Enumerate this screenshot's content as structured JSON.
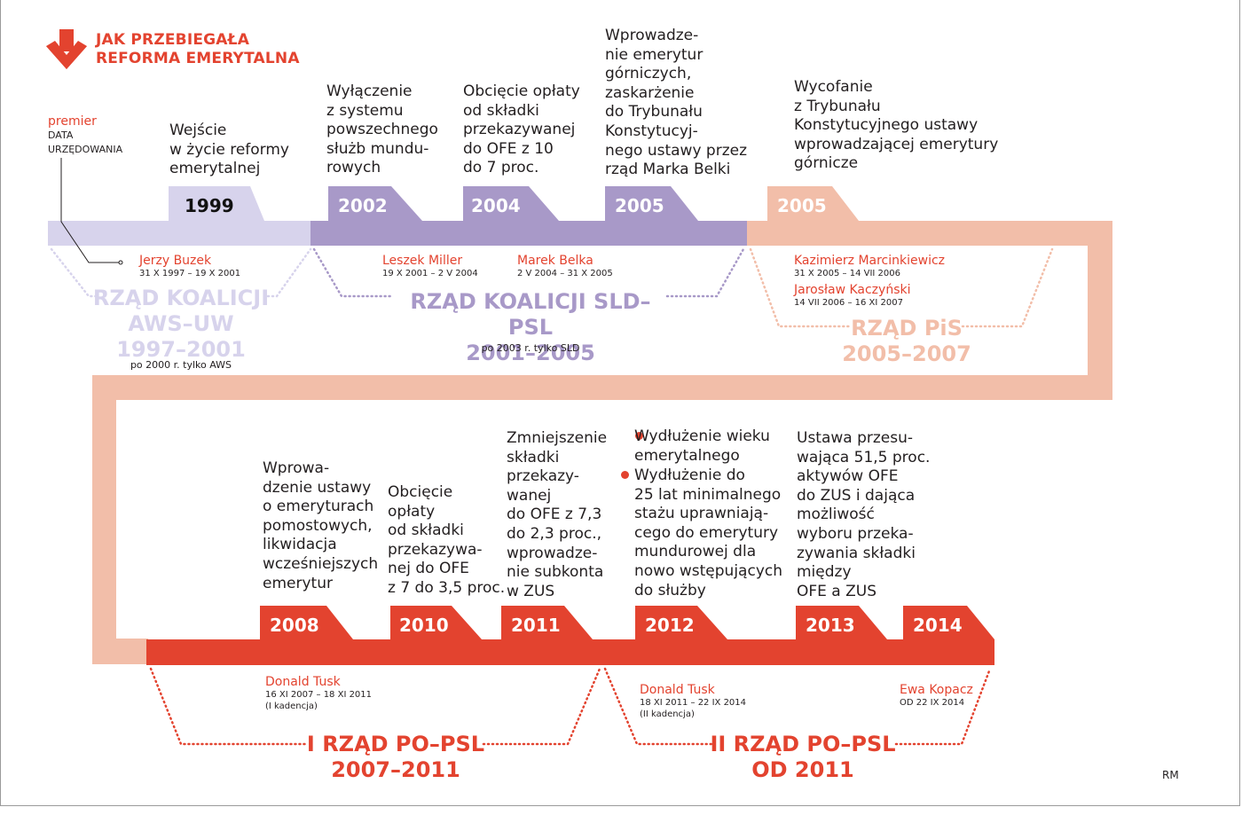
{
  "title": {
    "line1": "JAK PRZEBIEGAŁA",
    "line2": "REFORMA EMERYTALNA"
  },
  "legend": {
    "premier": "premier",
    "dates_line1": "DATA",
    "dates_line2": "URZĘDOWANIA"
  },
  "colors": {
    "aws": "#d7d3ec",
    "sld": "#a899c8",
    "pis": "#f2bea9",
    "po": "#e3432f",
    "accent": "#e3432f"
  },
  "top_events": [
    {
      "year": "1999",
      "text": "Wejście\nw życie reformy\nemerytalnej"
    },
    {
      "year": "2002",
      "text": "Wyłączenie\nz systemu\npowszechnego\nsłużb mundu-\nrowych"
    },
    {
      "year": "2004",
      "text": "Obcięcie opłaty\nod składki\nprzekazywanej\ndo OFE z 10\ndo 7 proc."
    },
    {
      "year": "2005",
      "text": "Wprowadze-\nnie emerytur\ngórniczych,\nzaskarżenie\ndo Trybunału\nKonstytucyj-\nnego ustawy przez\nrząd Marka Belki"
    },
    {
      "year": "2005",
      "text": "Wycofanie\nz Trybunału\nKonstytucyjnego ustawy\nwprowadzającej emerytury\ngórnicze"
    }
  ],
  "bottom_events": [
    {
      "year": "2008",
      "text": "Wprowa-\ndzenie ustawy\no emeryturach\npomostowych,\nlikwidacja\nwcześniejszych\nemerytur"
    },
    {
      "year": "2010",
      "text": "Obcięcie\nopłaty\nod składki\nprzekazywa-\nnej do OFE\nz 7 do 3,5 proc."
    },
    {
      "year": "2011",
      "text": "Zmniejszenie\nskładki\nprzekazy-\nwanej\ndo OFE z 7,3\ndo 2,3 proc.,\nwprowadze-\nnie subkonta\nw ZUS"
    },
    {
      "year": "2012",
      "text": "Wydłużenie wieku\nemerytalnego",
      "text2": "Wydłużenie do\n25 lat minimalnego\nstażu uprawniają-\ncego do emerytury\nmundurowej dla\nnowo wstępujących\ndo służby"
    },
    {
      "year": "2013",
      "text": "Ustawa przesu-\nwająca 51,5 proc.\naktywów OFE\ndo ZUS i dająca\nmożliwość\nwyboru przeka-\nzywania składki\nmiędzy\nOFE a ZUS"
    },
    {
      "year": "2014",
      "text": ""
    }
  ],
  "premiers": [
    {
      "name": "Jerzy Buzek",
      "dates": "31 X 1997 – 19 X 2001"
    },
    {
      "name": "Leszek Miller",
      "dates": "19 X 2001 – 2 V 2004"
    },
    {
      "name": "Marek Belka",
      "dates": "2 V 2004 – 31 X 2005"
    },
    {
      "name": "Kazimierz Marcinkiewicz",
      "dates": "31 X 2005 – 14 VII 2006"
    },
    {
      "name": "Jarosław Kaczyński",
      "dates": "14 VII 2006 – 16 XI 2007"
    },
    {
      "name": "Donald Tusk",
      "dates": "16 XI 2007 – 18 XI 2011\n(I kadencja)"
    },
    {
      "name": "Donald Tusk",
      "dates": "18 XI 2011 – 22 IX 2014\n(II kadencja)"
    },
    {
      "name": "Ewa Kopacz",
      "dates": "OD 22 IX 2014"
    }
  ],
  "governments": [
    {
      "line1": "RZĄD KOALICJI",
      "line2": "AWS–UW",
      "line3": "1997–2001",
      "note": "po 2000 r. tylko AWS"
    },
    {
      "line1": "RZĄD KOALICJI SLD–PSL",
      "line2": "2001–2005",
      "note": "po 2003 r. tylko SLD"
    },
    {
      "line1": "RZĄD PiS",
      "line2": "2005–2007"
    },
    {
      "line1": "I RZĄD PO–PSL",
      "line2": "2007–2011"
    },
    {
      "line1": "II RZĄD PO–PSL",
      "line2": "OD 2011"
    }
  ],
  "credit": "RM"
}
